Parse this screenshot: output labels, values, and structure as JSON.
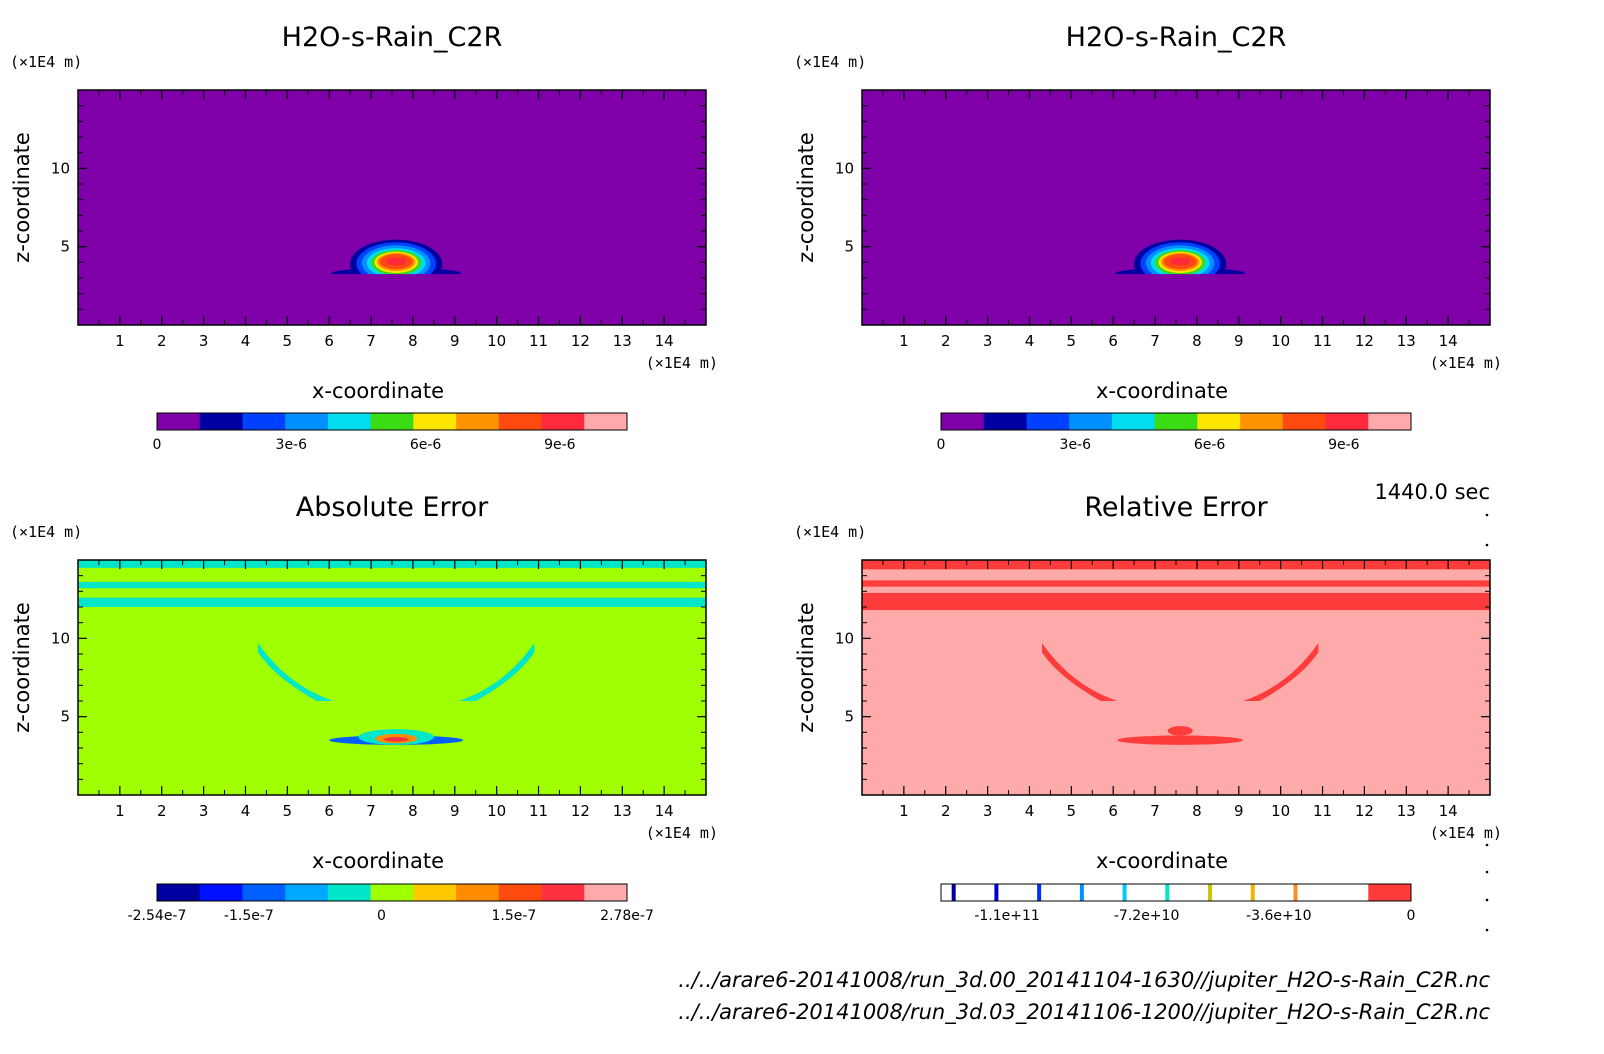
{
  "chart_data": [
    {
      "type": "heatmap",
      "title": "H2O-s-Rain_C2R",
      "xlabel": "x-coordinate",
      "ylabel": "z-coordinate",
      "xunit": "(×1E4 m)",
      "yunit": "(×1E4 m)",
      "xlim": [
        0,
        15
      ],
      "ylim": [
        0,
        15
      ],
      "xticks": [
        "1",
        "2",
        "3",
        "4",
        "5",
        "6",
        "7",
        "8",
        "9",
        "10",
        "11",
        "12",
        "13",
        "14"
      ],
      "yticks": [
        "5",
        "10"
      ],
      "colorbar": {
        "colors": [
          "#7f00a8",
          "#0000a0",
          "#0040ff",
          "#0090ff",
          "#00dcf0",
          "#3cdc14",
          "#ffe600",
          "#ff9400",
          "#ff4a10",
          "#ff2a3c",
          "#ffaaaa"
        ],
        "ticks": [
          "0",
          "3e-6",
          "6e-6",
          "9e-6"
        ],
        "tick_values": [
          0,
          3e-06,
          6e-06,
          9e-06
        ],
        "range": [
          0,
          1.05e-05
        ]
      },
      "background": "#7f00a8",
      "feature": "rain cell centered near x=7.6, z=4"
    },
    {
      "type": "heatmap",
      "title": "H2O-s-Rain_C2R",
      "xlabel": "x-coordinate",
      "ylabel": "z-coordinate",
      "xunit": "(×1E4 m)",
      "yunit": "(×1E4 m)",
      "xlim": [
        0,
        15
      ],
      "ylim": [
        0,
        15
      ],
      "xticks": [
        "1",
        "2",
        "3",
        "4",
        "5",
        "6",
        "7",
        "8",
        "9",
        "10",
        "11",
        "12",
        "13",
        "14"
      ],
      "yticks": [
        "5",
        "10"
      ],
      "colorbar": {
        "colors": [
          "#7f00a8",
          "#0000a0",
          "#0040ff",
          "#0090ff",
          "#00dcf0",
          "#3cdc14",
          "#ffe600",
          "#ff9400",
          "#ff4a10",
          "#ff2a3c",
          "#ffaaaa"
        ],
        "ticks": [
          "0",
          "3e-6",
          "6e-6",
          "9e-6"
        ],
        "tick_values": [
          0,
          3e-06,
          6e-06,
          9e-06
        ],
        "range": [
          0,
          1.05e-05
        ]
      },
      "background": "#7f00a8",
      "feature": "rain cell centered near x=7.6, z=4"
    },
    {
      "type": "heatmap",
      "title": "Absolute Error",
      "xlabel": "x-coordinate",
      "ylabel": "z-coordinate",
      "xunit": "(×1E4 m)",
      "yunit": "(×1E4 m)",
      "xlim": [
        0,
        15
      ],
      "ylim": [
        0,
        15
      ],
      "xticks": [
        "1",
        "2",
        "3",
        "4",
        "5",
        "6",
        "7",
        "8",
        "9",
        "10",
        "11",
        "12",
        "13",
        "14"
      ],
      "yticks": [
        "5",
        "10"
      ],
      "colorbar": {
        "colors": [
          "#0000a0",
          "#0010ff",
          "#0060ff",
          "#00a8ff",
          "#00e6c8",
          "#a0ff00",
          "#ffc800",
          "#ff8c00",
          "#ff4a10",
          "#ff3040",
          "#ffaaaa"
        ],
        "ticks": [
          "-2.54e-7",
          "-1.5e-7",
          "0",
          "1.5e-7",
          "2.78e-7"
        ],
        "tick_values": [
          -2.54e-07,
          -1.5e-07,
          0,
          1.5e-07,
          2.78e-07
        ],
        "range": [
          -2.54e-07,
          2.78e-07
        ]
      },
      "background": "#a0ff00",
      "feature": "small error bands near top (z 12-15) and around rain cell"
    },
    {
      "type": "heatmap",
      "title": "Relative Error",
      "xlabel": "x-coordinate",
      "ylabel": "z-coordinate",
      "xunit": "(×1E4 m)",
      "yunit": "(×1E4 m)",
      "xlim": [
        0,
        15
      ],
      "ylim": [
        0,
        15
      ],
      "xticks": [
        "1",
        "2",
        "3",
        "4",
        "5",
        "6",
        "7",
        "8",
        "9",
        "10",
        "11",
        "12",
        "13",
        "14"
      ],
      "yticks": [
        "5",
        "10"
      ],
      "colorbar": {
        "colors": [
          "#ffffff",
          "#ffffff",
          "#ffffff",
          "#ffffff",
          "#ffffff",
          "#ffffff",
          "#ffffff",
          "#ffffff",
          "#ffffff",
          "#ffffff",
          "#ff3c3c"
        ],
        "lines": [
          "#0000a0",
          "#0000c8",
          "#0030ff",
          "#0090ff",
          "#00c8ff",
          "#00e6c8",
          "#c8c800",
          "#f0b400",
          "#ff8c28"
        ],
        "ticks": [
          "-1.1e+11",
          "-7.2e+10",
          "-3.6e+10",
          "0"
        ],
        "tick_values": [
          -110000000000.0,
          -72000000000.0,
          -36000000000.0,
          0
        ],
        "range": [
          -128000000000.0,
          0
        ]
      },
      "background": "#ffaaaa",
      "feature": "error pattern mirroring absolute error"
    }
  ],
  "time_label": "1440.0 sec",
  "files": [
    "../../arare6-20141008/run_3d.00_20141104-1630//jupiter_H2O-s-Rain_C2R.nc",
    "../../arare6-20141008/run_3d.03_20141106-1200//jupiter_H2O-s-Rain_C2R.nc"
  ]
}
